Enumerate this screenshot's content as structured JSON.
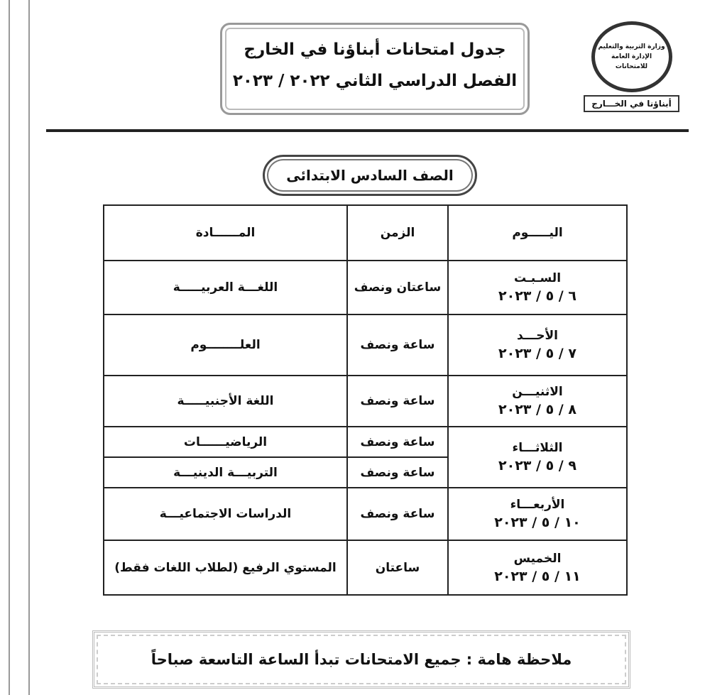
{
  "header": {
    "title": "جدول امتحانات أبناؤنا في الخارج",
    "subtitle": "الفصل الدراسي الثاني ٢٠٢٢ / ٢٠٢٣"
  },
  "logo": {
    "lines": [
      "وزارة التربية والتعليم",
      "الإدارة العامة للامتحانات"
    ],
    "caption": "أبناؤنا في الخـــارج"
  },
  "grade": "الصف السادس الابتدائى",
  "table": {
    "headers": [
      "اليـــــوم",
      "الزمن",
      "المــــــادة"
    ],
    "rows": [
      {
        "day": "السـبـت",
        "date": "٦ / ٥ / ٢٠٢٣",
        "exams": [
          {
            "duration": "ساعتان ونصف",
            "subject": "اللغـــة العربيـــــة"
          }
        ]
      },
      {
        "day": "الأحـــد",
        "date": "٧ / ٥ / ٢٠٢٣",
        "exams": [
          {
            "duration": "ساعة ونصف",
            "subject": "العلــــــــوم"
          }
        ]
      },
      {
        "day": "الاثنيـــن",
        "date": "٨ / ٥ / ٢٠٢٣",
        "exams": [
          {
            "duration": "ساعة ونصف",
            "subject": "اللغة الأجنبيـــــة"
          }
        ]
      },
      {
        "day": "الثلاثـــاء",
        "date": "٩ / ٥ / ٢٠٢٣",
        "exams": [
          {
            "duration": "ساعة ونصف",
            "subject": "الرياضيــــــات"
          },
          {
            "duration": "ساعة ونصف",
            "subject": "التربيـــة الدينيـــة"
          }
        ]
      },
      {
        "day": "الأربعـــاء",
        "date": "١٠ / ٥ / ٢٠٢٣",
        "exams": [
          {
            "duration": "ساعة ونصف",
            "subject": "الدراسات الاجتماعيـــة"
          }
        ]
      },
      {
        "day": "الخميس",
        "date": "١١ / ٥ / ٢٠٢٣",
        "exams": [
          {
            "duration": "ساعتان",
            "subject": "المستوي الرفيع (لطلاب اللغات فقط)"
          }
        ]
      }
    ]
  },
  "note": "ملاحظة هامة : جميع الامتحانات تبدأ الساعة التاسعة صباحاً"
}
